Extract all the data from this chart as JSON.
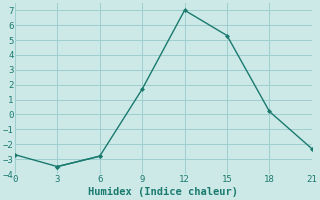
{
  "xlabel": "Humidex (Indice chaleur)",
  "line1_x": [
    0,
    3,
    6,
    9,
    12,
    15,
    18,
    21
  ],
  "line1_y": [
    -2.7,
    -3.5,
    -2.8,
    1.7,
    7.0,
    5.3,
    0.2,
    -2.3
  ],
  "line2_x": [
    3,
    6
  ],
  "line2_y": [
    -3.5,
    -2.8
  ],
  "line_color": "#1a7a6e",
  "background_color": "#cce9e8",
  "grid_color": "#9ecece",
  "xlim": [
    0,
    21
  ],
  "ylim": [
    -4,
    7.5
  ],
  "yticks": [
    -4,
    -3,
    -2,
    -1,
    0,
    1,
    2,
    3,
    4,
    5,
    6,
    7
  ],
  "xticks": [
    0,
    3,
    6,
    9,
    12,
    15,
    18,
    21
  ],
  "marker": "D",
  "markersize": 2.5,
  "linewidth": 1.0,
  "tick_fontsize": 6.5,
  "xlabel_fontsize": 7.5
}
